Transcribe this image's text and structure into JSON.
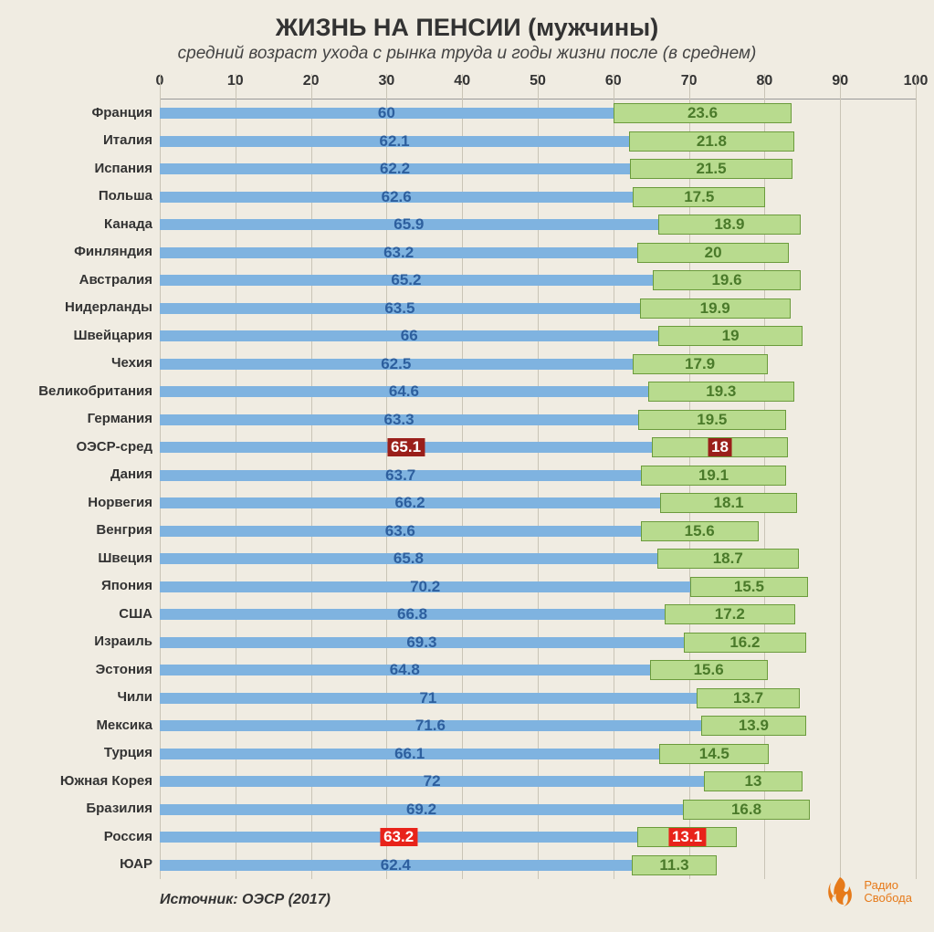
{
  "title": "ЖИЗНЬ НА ПЕНСИИ (мужчины)",
  "subtitle": "средний возраст ухода с рынка труда и годы жизни после (в среднем)",
  "title_fontsize": 27,
  "subtitle_fontsize": 19,
  "source": "Источник: ОЭСР (2017)",
  "logo_line1": "Радио",
  "logo_line2": "Свобода",
  "logo_color": "#e67a1a",
  "background_color": "#f0ece2",
  "chart": {
    "type": "stacked-horizontal-bar",
    "xlim": [
      0,
      100
    ],
    "xtick_step": 10,
    "xticks": [
      0,
      10,
      20,
      30,
      40,
      50,
      60,
      70,
      80,
      90,
      100
    ],
    "grid_color": "#c9c4b6",
    "bar1_color": "#7fb3e0",
    "bar2_fill": "#b8db8e",
    "bar2_border": "#6b9b3c",
    "value1_color": "#2d5f9e",
    "value2_color": "#4a7a2a",
    "highlight_bg_dark": "#9a1f1a",
    "highlight_bg_bright": "#e8231a",
    "highlight_text": "#ffffff",
    "label_fontsize": 15,
    "value_fontsize": 17,
    "axis_fontsize": 16,
    "rows": [
      {
        "label": "Франция",
        "v1": 60,
        "v2": 23.6,
        "hl": "none"
      },
      {
        "label": "Италия",
        "v1": 62.1,
        "v2": 21.8,
        "hl": "none"
      },
      {
        "label": "Испания",
        "v1": 62.2,
        "v2": 21.5,
        "hl": "none"
      },
      {
        "label": "Польша",
        "v1": 62.6,
        "v2": 17.5,
        "hl": "none"
      },
      {
        "label": "Канада",
        "v1": 65.9,
        "v2": 18.9,
        "hl": "none"
      },
      {
        "label": "Финляндия",
        "v1": 63.2,
        "v2": 20,
        "hl": "none"
      },
      {
        "label": "Австралия",
        "v1": 65.2,
        "v2": 19.6,
        "hl": "none"
      },
      {
        "label": "Нидерланды",
        "v1": 63.5,
        "v2": 19.9,
        "hl": "none"
      },
      {
        "label": "Швейцария",
        "v1": 66,
        "v2": 19,
        "hl": "none"
      },
      {
        "label": "Чехия",
        "v1": 62.5,
        "v2": 17.9,
        "hl": "none"
      },
      {
        "label": "Великобритания",
        "v1": 64.6,
        "v2": 19.3,
        "hl": "none"
      },
      {
        "label": "Германия",
        "v1": 63.3,
        "v2": 19.5,
        "hl": "none"
      },
      {
        "label": "ОЭСР-сред",
        "v1": 65.1,
        "v2": 18,
        "hl": "dark"
      },
      {
        "label": "Дания",
        "v1": 63.7,
        "v2": 19.1,
        "hl": "none"
      },
      {
        "label": "Норвегия",
        "v1": 66.2,
        "v2": 18.1,
        "hl": "none"
      },
      {
        "label": "Венгрия",
        "v1": 63.6,
        "v2": 15.6,
        "hl": "none"
      },
      {
        "label": "Швеция",
        "v1": 65.8,
        "v2": 18.7,
        "hl": "none"
      },
      {
        "label": "Япония",
        "v1": 70.2,
        "v2": 15.5,
        "hl": "none"
      },
      {
        "label": "США",
        "v1": 66.8,
        "v2": 17.2,
        "hl": "none"
      },
      {
        "label": "Израиль",
        "v1": 69.3,
        "v2": 16.2,
        "hl": "none"
      },
      {
        "label": "Эстония",
        "v1": 64.8,
        "v2": 15.6,
        "hl": "none"
      },
      {
        "label": "Чили",
        "v1": 71,
        "v2": 13.7,
        "hl": "none"
      },
      {
        "label": "Мексика",
        "v1": 71.6,
        "v2": 13.9,
        "hl": "none"
      },
      {
        "label": "Турция",
        "v1": 66.1,
        "v2": 14.5,
        "hl": "none"
      },
      {
        "label": "Южная Корея",
        "v1": 72,
        "v2": 13,
        "hl": "none"
      },
      {
        "label": "Бразилия",
        "v1": 69.2,
        "v2": 16.8,
        "hl": "none"
      },
      {
        "label": "Россия",
        "v1": 63.2,
        "v2": 13.1,
        "hl": "bright"
      },
      {
        "label": "ЮАР",
        "v1": 62.4,
        "v2": 11.3,
        "hl": "none"
      }
    ]
  }
}
